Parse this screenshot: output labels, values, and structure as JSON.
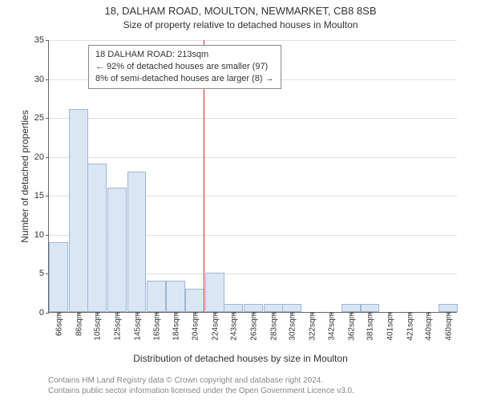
{
  "title_line1": "18, DALHAM ROAD, MOULTON, NEWMARKET, CB8 8SB",
  "title_line2": "Size of property relative to detached houses in Moulton",
  "chart": {
    "type": "histogram",
    "ylabel": "Number of detached properties",
    "xlabel": "Distribution of detached houses by size in Moulton",
    "ylim": [
      0,
      35
    ],
    "ytick_step": 5,
    "marker_sqm": 213,
    "bar_fill": "#dbe6f4",
    "bar_border": "#9db6d4",
    "grid_color": "#e0e0e0",
    "axis_color": "#666666",
    "marker_color": "#d62728",
    "background": "#ffffff",
    "bins": [
      {
        "sqm": 66,
        "count": 9,
        "label": "66sqm"
      },
      {
        "sqm": 86,
        "count": 26,
        "label": "86sqm"
      },
      {
        "sqm": 105,
        "count": 19,
        "label": "105sqm"
      },
      {
        "sqm": 125,
        "count": 16,
        "label": "125sqm"
      },
      {
        "sqm": 145,
        "count": 18,
        "label": "145sqm"
      },
      {
        "sqm": 165,
        "count": 4,
        "label": "165sqm"
      },
      {
        "sqm": 184,
        "count": 4,
        "label": "184sqm"
      },
      {
        "sqm": 204,
        "count": 3,
        "label": "204sqm"
      },
      {
        "sqm": 224,
        "count": 5,
        "label": "224sqm"
      },
      {
        "sqm": 243,
        "count": 1,
        "label": "243sqm"
      },
      {
        "sqm": 263,
        "count": 1,
        "label": "263sqm"
      },
      {
        "sqm": 283,
        "count": 1,
        "label": "283sqm"
      },
      {
        "sqm": 302,
        "count": 1,
        "label": "302sqm"
      },
      {
        "sqm": 322,
        "count": 0,
        "label": "322sqm"
      },
      {
        "sqm": 342,
        "count": 0,
        "label": "342sqm"
      },
      {
        "sqm": 362,
        "count": 1,
        "label": "362sqm"
      },
      {
        "sqm": 381,
        "count": 1,
        "label": "381sqm"
      },
      {
        "sqm": 401,
        "count": 0,
        "label": "401sqm"
      },
      {
        "sqm": 421,
        "count": 0,
        "label": "421sqm"
      },
      {
        "sqm": 440,
        "count": 0,
        "label": "440sqm"
      },
      {
        "sqm": 460,
        "count": 1,
        "label": "460sqm"
      }
    ]
  },
  "annotation": {
    "line1": "18 DALHAM ROAD: 213sqm",
    "line2": "← 92% of detached houses are smaller (97)",
    "line3": "8% of semi-detached houses are larger (8) →"
  },
  "footer": {
    "line1": "Contains HM Land Registry data © Crown copyright and database right 2024.",
    "line2": "Contains public sector information licensed under the Open Government Licence v3.0."
  }
}
